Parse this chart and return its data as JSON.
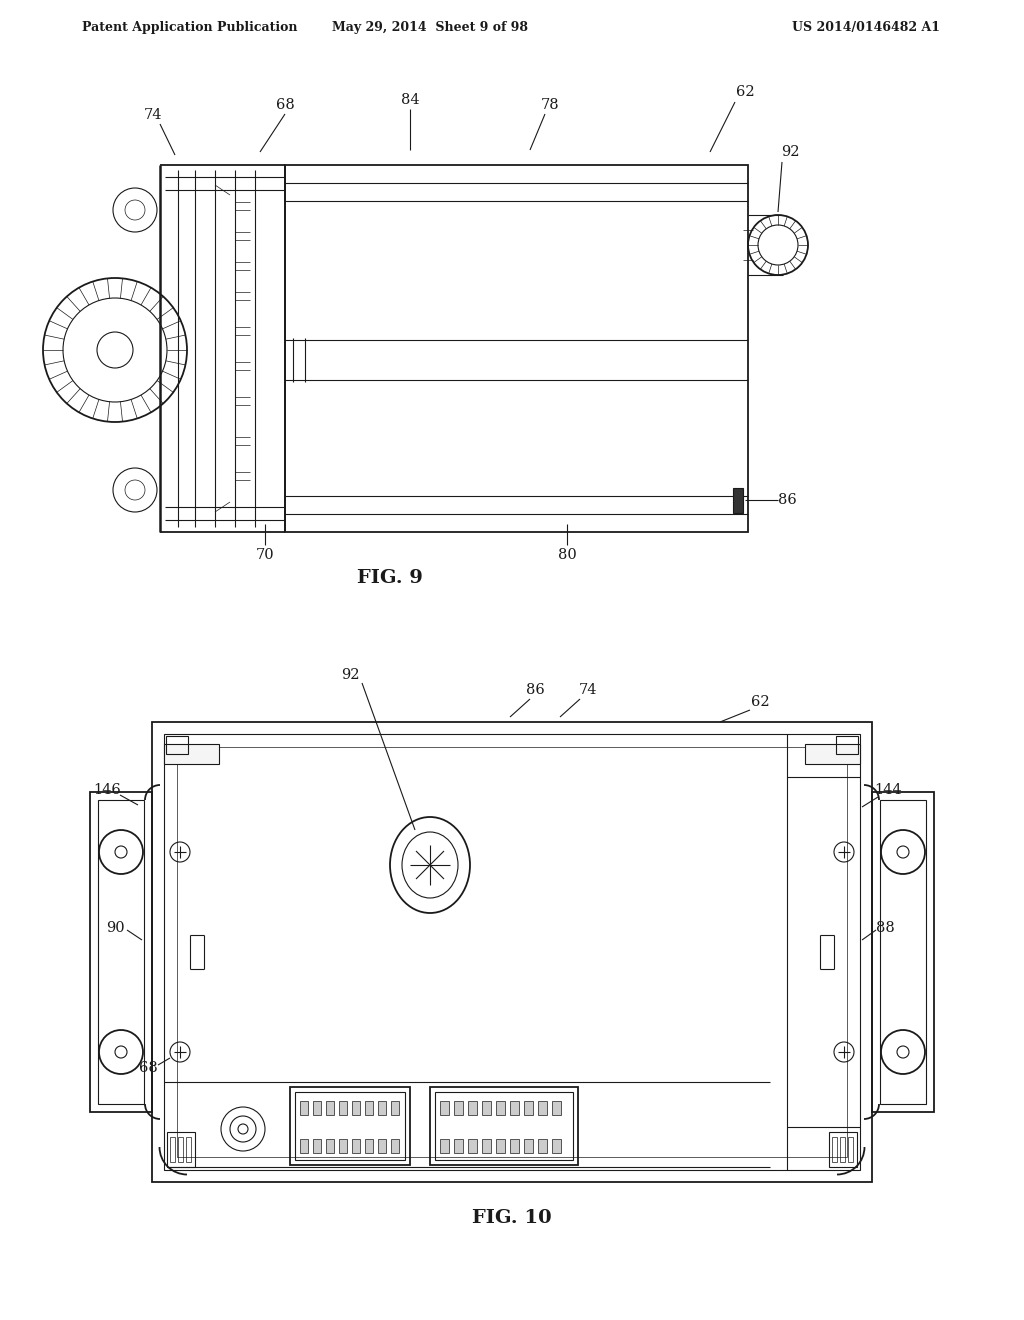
{
  "bg_color": "#ffffff",
  "line_color": "#1a1a1a",
  "header_left": "Patent Application Publication",
  "header_center": "May 29, 2014  Sheet 9 of 98",
  "header_right": "US 2014/0146482 A1",
  "fig9_label": "FIG. 9",
  "fig10_label": "FIG. 10"
}
